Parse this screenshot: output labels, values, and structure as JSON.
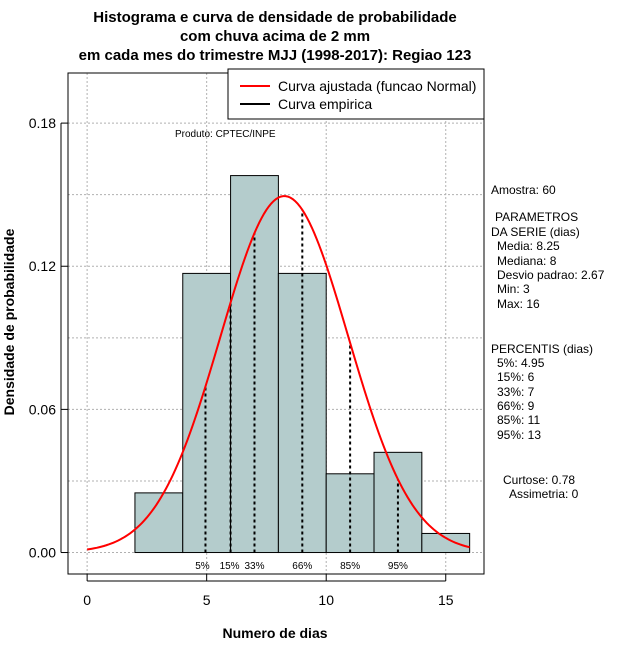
{
  "chart_data": {
    "type": "bar",
    "title_lines": [
      "Histograma e curva de densidade de probabilidade",
      "com chuva acima de 2 mm",
      "em cada mes do trimestre MJJ (1998-2017): Regiao 123"
    ],
    "xlabel": "Numero de dias",
    "ylabel": "Densidade de probabilidade",
    "xlim": [
      -0.8,
      16.6
    ],
    "ylim": [
      -0.009,
      0.201
    ],
    "x_ticks": [
      0,
      5,
      10,
      15
    ],
    "y_ticks": [
      0.0,
      0.06,
      0.12,
      0.18
    ],
    "y_tick_labels": [
      "0.00",
      "0.06",
      "0.12",
      "0.18"
    ],
    "bins": [
      {
        "x0": 2,
        "x1": 4,
        "density": 0.025
      },
      {
        "x0": 4,
        "x1": 6,
        "density": 0.117
      },
      {
        "x0": 6,
        "x1": 8,
        "density": 0.158
      },
      {
        "x0": 8,
        "x1": 10,
        "density": 0.117
      },
      {
        "x0": 10,
        "x1": 12,
        "density": 0.033
      },
      {
        "x0": 12,
        "x1": 14,
        "density": 0.042
      },
      {
        "x0": 14,
        "x1": 16,
        "density": 0.008
      }
    ],
    "normal_fit": {
      "mean": 8.25,
      "sd": 2.67,
      "x_from": 0,
      "x_to": 16
    },
    "percentile_lines": [
      {
        "label": "5%",
        "x": 4.95
      },
      {
        "label": "15%",
        "x": 6
      },
      {
        "label": "33%",
        "x": 7
      },
      {
        "label": "66%",
        "x": 9
      },
      {
        "label": "85%",
        "x": 11
      },
      {
        "label": "95%",
        "x": 13
      }
    ],
    "legend": {
      "placement": "top-right",
      "entries": [
        {
          "label": "Curva ajustada (funcao Normal)",
          "color": "#ff0000"
        },
        {
          "label": "Curva empirica",
          "color": "#000000"
        }
      ]
    },
    "grid": true,
    "colors": {
      "bar_fill": "#b4cccc",
      "curve": "#ff0000"
    },
    "annotation": "Produto: CPTEC/INPE"
  },
  "stats": {
    "amostra": "Amostra: 60",
    "parametros_title": "PARAMETROS",
    "parametros_subtitle": "DA SERIE (dias)",
    "parametros": [
      "Media: 8.25",
      "Mediana: 8",
      "Desvio padrao: 2.67",
      "Min: 3",
      "Max: 16"
    ],
    "percentis_title": "PERCENTIS (dias)",
    "percentis": [
      "5%: 4.95",
      "15%: 6",
      "33%: 7",
      "66%: 9",
      "85%: 11",
      "95%: 13"
    ],
    "curtose": "Curtose: 0.78",
    "assimetria": "Assimetria: 0"
  }
}
